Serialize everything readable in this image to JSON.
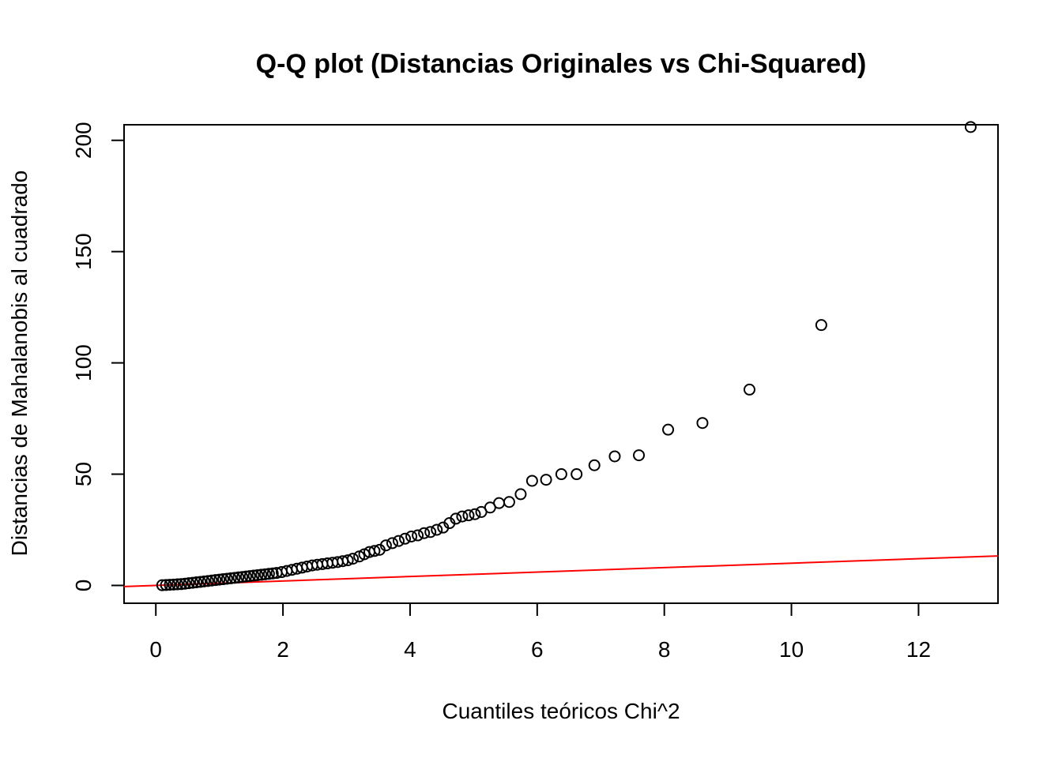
{
  "chart_data": {
    "type": "scatter",
    "title": "Q-Q plot (Distancias Originales vs Chi-Squared)",
    "xlabel": "Cuantiles teóricos Chi^2",
    "ylabel": "Distancias de Mahalanobis al cuadrado",
    "xlim": [
      -0.5,
      13.25
    ],
    "ylim": [
      -8,
      207
    ],
    "xticks": [
      0,
      2,
      4,
      6,
      8,
      10,
      12
    ],
    "yticks": [
      0,
      50,
      100,
      150,
      200
    ],
    "grid": false,
    "legend": "none",
    "point_color": "#000000",
    "reference_line": {
      "intercept": 0,
      "slope": 1,
      "color": "#ff0000"
    },
    "series": [
      {
        "x": [
          0.1,
          0.16,
          0.22,
          0.28,
          0.34,
          0.4,
          0.46,
          0.52,
          0.58,
          0.64,
          0.7,
          0.76,
          0.82,
          0.88,
          0.94,
          1.0,
          1.06,
          1.12,
          1.18,
          1.24,
          1.3,
          1.36,
          1.42,
          1.48,
          1.54,
          1.6,
          1.66,
          1.72,
          1.78,
          1.84,
          1.9,
          1.98,
          2.06,
          2.14,
          2.22,
          2.3,
          2.38,
          2.46,
          2.54,
          2.62,
          2.7,
          2.78,
          2.86,
          2.94,
          3.02,
          3.1,
          3.2,
          3.28,
          3.36,
          3.44,
          3.52,
          3.62,
          3.72,
          3.82,
          3.92,
          4.02,
          4.12,
          4.22,
          4.32,
          4.42,
          4.52,
          4.62,
          4.72,
          4.82,
          4.92,
          5.02,
          5.12,
          5.26,
          5.4,
          5.56,
          5.74,
          5.92,
          6.14,
          6.38,
          6.62,
          6.9,
          7.22,
          7.6,
          8.06,
          8.6,
          9.34,
          10.47,
          12.82
        ],
        "y": [
          0.1,
          0.2,
          0.3,
          0.4,
          0.5,
          0.6,
          0.8,
          1.0,
          1.2,
          1.4,
          1.6,
          1.8,
          2.0,
          2.2,
          2.4,
          2.6,
          2.8,
          3.0,
          3.2,
          3.4,
          3.6,
          3.8,
          4.0,
          4.2,
          4.4,
          4.6,
          4.8,
          5.0,
          5.2,
          5.4,
          5.6,
          6.0,
          6.5,
          7.0,
          7.5,
          8.0,
          8.5,
          9.0,
          9.3,
          9.6,
          9.9,
          10.2,
          10.5,
          10.9,
          11.3,
          12.0,
          13.0,
          14.0,
          15.0,
          15.5,
          16.0,
          18.0,
          19.0,
          20.0,
          21.0,
          22.0,
          22.5,
          23.5,
          24.0,
          25.0,
          26.0,
          28.0,
          30.0,
          31.0,
          31.5,
          32.0,
          33.0,
          35.0,
          37.0,
          37.5,
          41.0,
          47.0,
          47.5,
          50.0,
          50.0,
          54.0,
          58.0,
          58.5,
          70.0,
          73.0,
          88.0,
          117.0,
          206.0
        ]
      }
    ]
  }
}
